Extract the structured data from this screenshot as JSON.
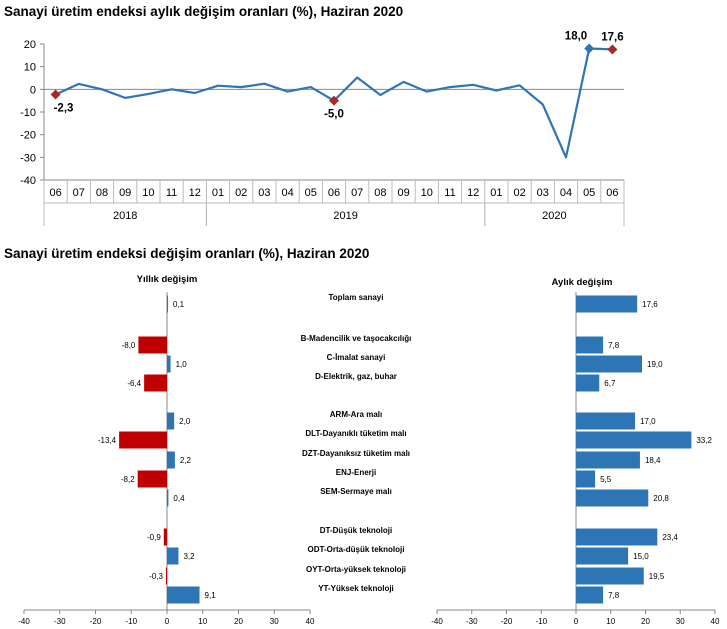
{
  "chart_data": [
    {
      "type": "line",
      "title": "Sanayi üretim endeksi  aylık değişim oranları (%), Haziran 2020",
      "x": [
        "06",
        "07",
        "08",
        "09",
        "10",
        "11",
        "12",
        "01",
        "02",
        "03",
        "04",
        "05",
        "06",
        "07",
        "08",
        "09",
        "10",
        "11",
        "12",
        "01",
        "02",
        "03",
        "04",
        "05",
        "06"
      ],
      "years": [
        {
          "label": "2018",
          "from": 0,
          "to": 6
        },
        {
          "label": "2019",
          "from": 7,
          "to": 18
        },
        {
          "label": "2020",
          "from": 19,
          "to": 24
        }
      ],
      "values": [
        -2.3,
        2.4,
        0.0,
        -3.8,
        -2.0,
        0.0,
        -1.6,
        1.6,
        1.0,
        2.5,
        -1.0,
        1.0,
        -5.0,
        5.2,
        -2.5,
        3.3,
        -1.0,
        1.0,
        2.0,
        -0.5,
        1.8,
        -6.7,
        -30.0,
        18.0,
        17.6
      ],
      "markers": [
        {
          "index": 0,
          "label": "-2,3",
          "color": "#a52a2a",
          "label_pos": "below"
        },
        {
          "index": 12,
          "label": "-5,0",
          "color": "#a52a2a",
          "label_pos": "below"
        },
        {
          "index": 23,
          "label": "18,0",
          "color": "#2e75b6",
          "label_pos": "above-left"
        },
        {
          "index": 24,
          "label": "17,6",
          "color": "#a52a2a",
          "label_pos": "above"
        }
      ],
      "ylim": [
        -40,
        20
      ],
      "yticks": [
        20,
        10,
        0,
        -10,
        -20,
        -30,
        -40
      ],
      "line_color": "#2e75b6"
    },
    {
      "type": "bar",
      "orientation": "horizontal",
      "title": "Sanayi üretim endeksi  değişim oranları (%), Haziran 2020",
      "rows": [
        {
          "label": "Toplam sanayi",
          "yillik": 0.1,
          "yillik_label": "0,1",
          "aylik": 17.6,
          "aylik_label": "17,6"
        },
        {
          "label": "B-Madencilik ve taşocakcılığı",
          "yillik": -8.0,
          "yillik_label": "-8,0",
          "aylik": 7.8,
          "aylik_label": "7,8"
        },
        {
          "label": "C-İmalat sanayi",
          "yillik": 1.0,
          "yillik_label": "1,0",
          "aylik": 19.0,
          "aylik_label": "19,0"
        },
        {
          "label": "D-Elektrik, gaz, buhar",
          "yillik": -6.4,
          "yillik_label": "-6,4",
          "aylik": 6.7,
          "aylik_label": "6,7"
        },
        {
          "label": "ARM-Ara malı",
          "yillik": 2.0,
          "yillik_label": "2,0",
          "aylik": 17.0,
          "aylik_label": "17,0"
        },
        {
          "label": "DLT-Dayanıklı tüketim malı",
          "yillik": -13.4,
          "yillik_label": "-13,4",
          "aylik": 33.2,
          "aylik_label": "33,2"
        },
        {
          "label": "DZT-Dayanıksız tüketim malı",
          "yillik": 2.2,
          "yillik_label": "2,2",
          "aylik": 18.4,
          "aylik_label": "18,4"
        },
        {
          "label": "ENJ-Enerji",
          "yillik": -8.2,
          "yillik_label": "-8,2",
          "aylik": 5.5,
          "aylik_label": "5,5"
        },
        {
          "label": "SEM-Sermaye malı",
          "yillik": 0.4,
          "yillik_label": "0,4",
          "aylik": 20.8,
          "aylik_label": "20,8"
        },
        {
          "label": "DT-Düşük teknoloji",
          "yillik": -0.9,
          "yillik_label": "-0,9",
          "aylik": 23.4,
          "aylik_label": "23,4"
        },
        {
          "label": "ODT-Orta-düşük teknoloji",
          "yillik": 3.2,
          "yillik_label": "3,2",
          "aylik": 15.0,
          "aylik_label": "15,0"
        },
        {
          "label": "OYT-Orta-yüksek teknoloji",
          "yillik": -0.3,
          "yillik_label": "-0,3",
          "aylik": 19.5,
          "aylik_label": "19,5"
        },
        {
          "label": "YT-Yüksek teknoloji",
          "yillik": 9.1,
          "yillik_label": "9,1",
          "aylik": 7.8,
          "aylik_label": "7,8"
        }
      ],
      "groups": [
        1,
        3,
        5,
        4
      ],
      "yillik": {
        "title": "Yıllık değişim",
        "xlim": [
          -40,
          40
        ],
        "xticks": [
          -40,
          -30,
          -20,
          -10,
          0,
          10,
          20,
          30,
          40
        ]
      },
      "aylik": {
        "title": "Aylık değişim",
        "xlim": [
          -40,
          40
        ],
        "xticks": [
          -40,
          -30,
          -20,
          -10,
          0,
          10,
          20,
          30,
          40
        ]
      },
      "positive_color": "#2e75b6",
      "negative_color": "#c00000"
    }
  ]
}
